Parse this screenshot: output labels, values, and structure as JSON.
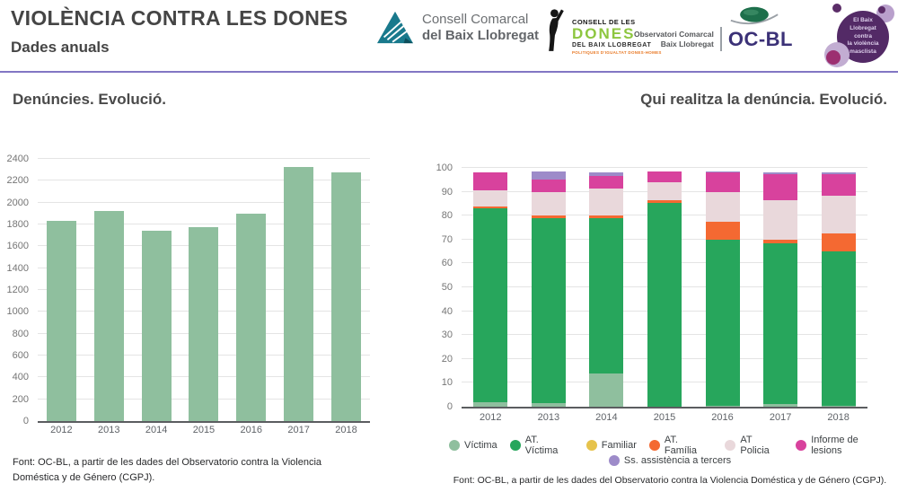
{
  "header": {
    "title": "VIOLÈNCIA CONTRA LES DONES",
    "subtitle": "Dades anuals",
    "accent_color": "#8276c4",
    "logos": {
      "consell_comarcal": {
        "line1": "Consell Comarcal",
        "line2": "del Baix Llobregat"
      },
      "consell_dones": {
        "line1": "CONSELL DE LES",
        "line2": "DONES",
        "line3": "DEL BAIX LLOBREGAT",
        "line4": "POLITIQUES D'IGUALTAT DONES-HOMES",
        "green": "#8dc63f",
        "orange": "#e87722"
      },
      "observatori": {
        "line1": "Observatori Comarcal",
        "line2": "Baix Llobregat",
        "acronym": "OC-BL",
        "acronym_color": "#3b3177"
      },
      "campaign": {
        "lines": [
          "El Baix",
          "Llobregat",
          "contra",
          "la violència",
          "masclista"
        ],
        "circle_color": "#532a66"
      }
    }
  },
  "chart_data": [
    {
      "id": "denuncies",
      "type": "bar",
      "title": "Denúncies. Evolució.",
      "categories": [
        "2012",
        "2013",
        "2014",
        "2015",
        "2016",
        "2017",
        "2018"
      ],
      "values": [
        1830,
        1920,
        1745,
        1775,
        1900,
        2330,
        2280
      ],
      "bar_color": "#8fbf9e",
      "ylim": [
        0,
        2400
      ],
      "ytick_step": 200,
      "grid": true,
      "footnote": "Font: OC-BL, a partir de les dades del Observatorio contra la Violencia Doméstica y de Género (CGPJ)."
    },
    {
      "id": "qui_realitza_denuncia",
      "type": "stacked-bar",
      "title": "Qui realitza la denúncia. Evolució.",
      "categories": [
        "2012",
        "2013",
        "2014",
        "2015",
        "2016",
        "2017",
        "2018"
      ],
      "series": [
        {
          "name": "Víctima",
          "color": "#8fbf9e",
          "values": [
            2,
            1.5,
            14,
            0,
            0.5,
            1,
            0.5
          ]
        },
        {
          "name": "AT. Víctima",
          "color": "#27a65c",
          "values": [
            81,
            77.5,
            65,
            85.5,
            69.5,
            67.5,
            64.5
          ]
        },
        {
          "name": "Familiar",
          "color": "#e6c34c",
          "values": [
            0,
            0,
            0,
            0,
            0,
            0,
            0
          ]
        },
        {
          "name": "AT. Família",
          "color": "#f46932",
          "values": [
            1,
            1,
            1,
            1,
            7.5,
            1.5,
            7.5
          ]
        },
        {
          "name": "AT Policia",
          "color": "#e9d8db",
          "values": [
            6.5,
            10,
            11.5,
            7.5,
            12.5,
            16.5,
            16
          ]
        },
        {
          "name": "Informe de lesions",
          "color": "#d8429d",
          "values": [
            7.5,
            5,
            5,
            4.5,
            8,
            11,
            9
          ]
        },
        {
          "name": "Ss. assistència a tercers",
          "color": "#9d8bc9",
          "values": [
            0,
            3.5,
            1.5,
            0,
            0.5,
            0.5,
            0.5
          ]
        }
      ],
      "ylim": [
        0,
        100
      ],
      "ytick_step": 10,
      "grid": true,
      "legend_position": "bottom",
      "footnote": "Font: OC-BL, a partir de les dades del Observatorio contra la Violencia Doméstica y de Género (CGPJ)."
    }
  ]
}
